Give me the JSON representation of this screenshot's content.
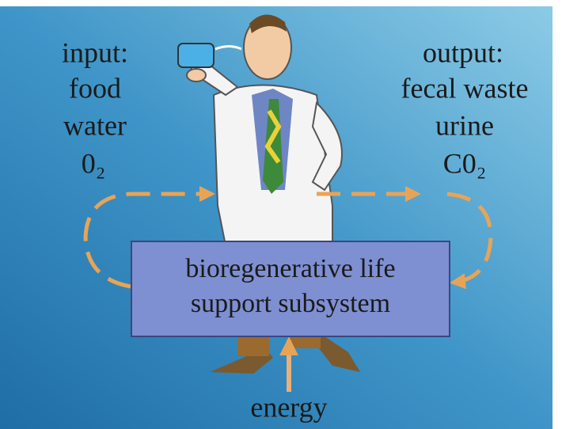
{
  "input": {
    "heading": "input:",
    "items": [
      "food",
      "water",
      "0₂"
    ]
  },
  "output": {
    "heading": "output:",
    "items": [
      "fecal waste",
      "urine",
      "C0₂"
    ]
  },
  "subsystem": {
    "lines": [
      "bioregenerative life",
      "support subsystem"
    ]
  },
  "energy": "energy"
}
